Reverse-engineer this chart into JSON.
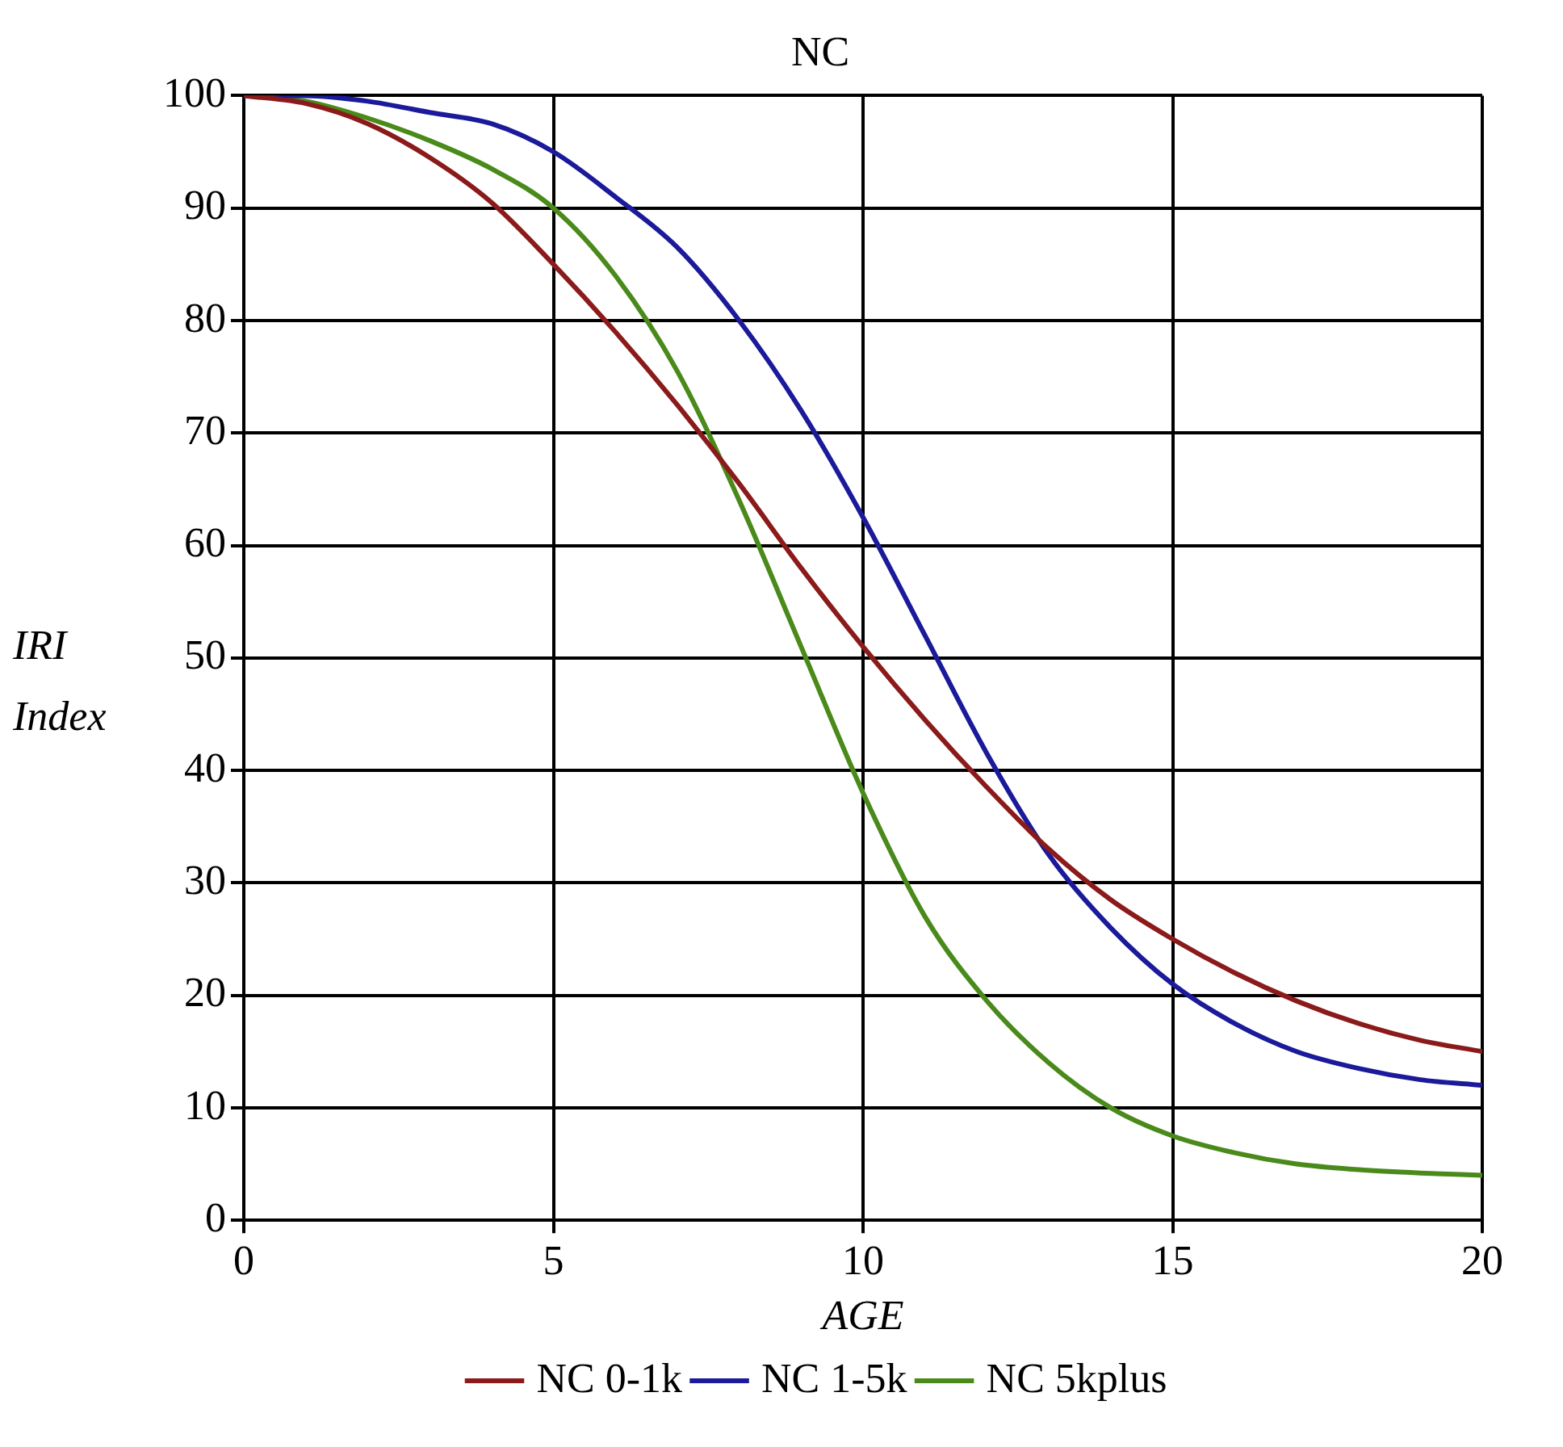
{
  "chart_data": {
    "type": "line",
    "title": "NC",
    "xlabel": "AGE",
    "ylabel": "IRI Index",
    "x": [
      0,
      1,
      2,
      3,
      4,
      5,
      6,
      7,
      8,
      9,
      10,
      11,
      12,
      13,
      14,
      15,
      16,
      17,
      18,
      19,
      20
    ],
    "series": [
      {
        "name": "NC 0-1k",
        "color": "#8b1a1a",
        "values": [
          100,
          99.3,
          97.5,
          94.5,
          90.5,
          85,
          79,
          72.5,
          65.5,
          58,
          51,
          44.5,
          38.5,
          33,
          28.5,
          25,
          22,
          19.5,
          17.5,
          16,
          15
        ]
      },
      {
        "name": "NC 1-5k",
        "color": "#1a1a9a",
        "values": [
          100,
          100,
          99.5,
          98.5,
          97.5,
          95,
          91,
          86.5,
          80,
          72,
          62.5,
          52,
          41.5,
          32.5,
          26,
          21,
          17.5,
          15,
          13.5,
          12.5,
          12
        ]
      },
      {
        "name": "NC 5kplus",
        "color": "#4a8a1a",
        "values": [
          100,
          99.5,
          98,
          96,
          93.5,
          90,
          84,
          75.5,
          64,
          51,
          38,
          27,
          19.5,
          14,
          10,
          7.5,
          6,
          5,
          4.5,
          4.2,
          4
        ]
      }
    ],
    "xlim": [
      0,
      20
    ],
    "xticks": [
      0,
      5,
      10,
      15,
      20
    ],
    "ylim": [
      0,
      100
    ],
    "yticks": [
      0,
      10,
      20,
      30,
      40,
      50,
      60,
      70,
      80,
      90,
      100
    ],
    "grid": true,
    "legend": "bottom",
    "marker": "none",
    "line_style": "solid"
  }
}
